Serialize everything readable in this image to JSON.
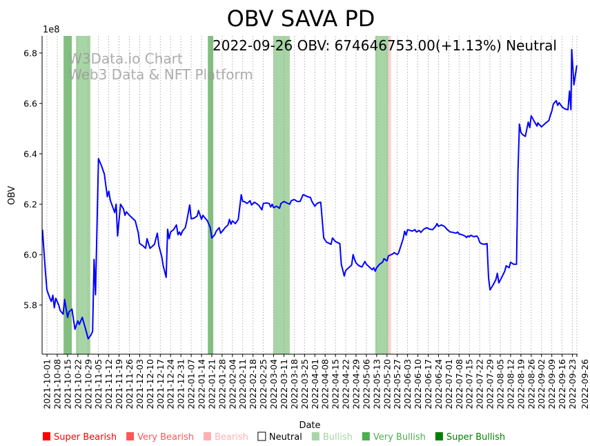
{
  "chart_data": {
    "type": "line",
    "title": "OBV SAVA PD",
    "annotation": "2022-09-26 OBV: 674646753.00(+1.13%) Neutral",
    "watermark": [
      "W3Data.io Chart",
      "Web3 Data & NFT Platform"
    ],
    "xlabel": "Date",
    "ylabel": "OBV",
    "y_offset_label": "1e8",
    "x_origin_date": "2021-10-01",
    "x_unit": "days since 2021-10-01",
    "xlim": [
      -3.3,
      360.5
    ],
    "ylim": [
      5.605,
      6.868
    ],
    "y_scale": 100000000,
    "grid": "x dotted",
    "yticks": [
      "5.8",
      "6.0",
      "6.2",
      "6.4",
      "6.6",
      "6.8"
    ],
    "xtick_days": [
      0,
      7,
      14,
      21,
      28,
      35,
      42,
      49,
      56,
      63,
      70,
      77,
      84,
      91,
      98,
      105,
      112,
      119,
      126,
      133,
      140,
      147,
      154,
      161,
      168,
      175,
      182,
      189,
      196,
      203,
      210,
      217,
      224,
      231,
      238,
      245,
      252,
      259,
      266,
      273,
      280,
      287,
      294,
      301,
      308,
      315,
      322,
      329,
      336,
      343,
      350,
      357,
      360
    ],
    "xticks": [
      "2021-10-01",
      "2021-10-08",
      "2021-10-15",
      "2021-10-22",
      "2021-10-29",
      "2021-11-05",
      "2021-11-12",
      "2021-11-19",
      "2021-11-26",
      "2021-12-03",
      "2021-12-10",
      "2021-12-17",
      "2021-12-24",
      "2021-12-31",
      "2022-01-07",
      "2022-01-14",
      "2022-01-21",
      "2022-01-28",
      "2022-02-04",
      "2022-02-11",
      "2022-02-18",
      "2022-02-25",
      "2022-03-04",
      "2022-03-11",
      "2022-03-18",
      "2022-03-25",
      "2022-04-01",
      "2022-04-08",
      "2022-04-15",
      "2022-04-22",
      "2022-04-29",
      "2022-05-06",
      "2022-05-13",
      "2022-05-20",
      "2022-05-27",
      "2022-06-03",
      "2022-06-10",
      "2022-06-17",
      "2022-06-24",
      "2022-07-01",
      "2022-07-08",
      "2022-07-15",
      "2022-07-22",
      "2022-07-29",
      "2022-08-05",
      "2022-08-12",
      "2022-08-19",
      "2022-08-26",
      "2022-09-02",
      "2022-09-09",
      "2022-09-16",
      "2022-09-23",
      "2022-09-26"
    ],
    "series": [
      {
        "name": "OBV",
        "color": "#0000ff",
        "x": [
          -3,
          -2,
          -1,
          0,
          2,
          3,
          4,
          5,
          6,
          8,
          9,
          11,
          12,
          14,
          15,
          17,
          19,
          21,
          22,
          23,
          24,
          26,
          28,
          30,
          31,
          32,
          33,
          35,
          37,
          39,
          41,
          42,
          43,
          45,
          46,
          47,
          48,
          50,
          52,
          53,
          54,
          56,
          58,
          60,
          62,
          63,
          65,
          67,
          68,
          70,
          73,
          75,
          76,
          78,
          79,
          81,
          82,
          83,
          84,
          86,
          88,
          89,
          90,
          91,
          92,
          94,
          95,
          97,
          98,
          100,
          102,
          103,
          105,
          106,
          107,
          109,
          111,
          112,
          114,
          115,
          117,
          118,
          120,
          121,
          123,
          124,
          125,
          126,
          128,
          130,
          132,
          133,
          134,
          136,
          138,
          139,
          141,
          143,
          144,
          146,
          147,
          149,
          151,
          152,
          153,
          154,
          156,
          158,
          159,
          161,
          163,
          165,
          166,
          168,
          170,
          172,
          174,
          175,
          177,
          179,
          180,
          182,
          183,
          184,
          186,
          187,
          188,
          190,
          191,
          193,
          194,
          196,
          197,
          199,
          200,
          202,
          203,
          205,
          207,
          208,
          209,
          210,
          212,
          214,
          216,
          217,
          219,
          221,
          222,
          223,
          224,
          226,
          228,
          229,
          231,
          232,
          235,
          236,
          238,
          239,
          242,
          243,
          244,
          245,
          247,
          248,
          250,
          251,
          253,
          254,
          256,
          258,
          260,
          262,
          264,
          265,
          266,
          268,
          270,
          272,
          274,
          276,
          278,
          279,
          280,
          282,
          284,
          285,
          286,
          287,
          288,
          290,
          292,
          293,
          294,
          295,
          297,
          299,
          300,
          301,
          303,
          305,
          306,
          307,
          309,
          311,
          312,
          314,
          315,
          317,
          319,
          320,
          321,
          322,
          323,
          325,
          327,
          328,
          329,
          331,
          333,
          333.5,
          336,
          339,
          341,
          342,
          343,
          344,
          346,
          347,
          348,
          350,
          352,
          354,
          355,
          356,
          356.5,
          358,
          360
        ],
        "y": [
          6.099,
          6.01,
          5.93,
          5.86,
          5.827,
          5.814,
          5.839,
          5.789,
          5.827,
          5.8,
          5.778,
          5.764,
          5.822,
          5.751,
          5.773,
          5.784,
          5.704,
          5.737,
          5.723,
          5.737,
          5.751,
          5.71,
          5.666,
          5.682,
          5.696,
          5.981,
          5.841,
          6.381,
          6.353,
          6.32,
          6.23,
          6.252,
          6.216,
          6.184,
          6.167,
          6.2,
          6.074,
          6.2,
          6.181,
          6.156,
          6.17,
          6.156,
          6.145,
          6.134,
          6.088,
          6.044,
          6.036,
          6.025,
          6.063,
          6.025,
          6.041,
          6.085,
          6.036,
          5.992,
          5.956,
          5.91,
          6.101,
          6.063,
          6.09,
          6.099,
          6.118,
          6.079,
          6.09,
          6.077,
          6.093,
          6.107,
          6.134,
          6.197,
          6.142,
          6.145,
          6.153,
          6.175,
          6.14,
          6.156,
          6.148,
          6.134,
          6.107,
          6.066,
          6.079,
          6.093,
          6.107,
          6.085,
          6.099,
          6.107,
          6.118,
          6.14,
          6.121,
          6.134,
          6.123,
          6.14,
          6.238,
          6.211,
          6.211,
          6.203,
          6.214,
          6.197,
          6.208,
          6.2,
          6.195,
          6.178,
          6.203,
          6.205,
          6.203,
          6.189,
          6.2,
          6.186,
          6.192,
          6.184,
          6.203,
          6.211,
          6.205,
          6.2,
          6.214,
          6.219,
          6.211,
          6.211,
          6.238,
          6.236,
          6.23,
          6.227,
          6.211,
          6.192,
          6.2,
          6.205,
          6.208,
          6.14,
          6.066,
          6.049,
          6.047,
          6.041,
          6.066,
          6.052,
          6.049,
          6.044,
          5.962,
          5.915,
          5.937,
          5.948,
          5.959,
          6.0,
          5.981,
          5.967,
          5.956,
          5.951,
          5.973,
          5.962,
          5.951,
          5.94,
          5.948,
          5.934,
          5.948,
          5.962,
          5.97,
          5.984,
          5.975,
          5.995,
          6.003,
          6.008,
          6.0,
          6.008,
          6.063,
          6.093,
          6.077,
          6.099,
          6.096,
          6.093,
          6.099,
          6.09,
          6.096,
          6.088,
          6.101,
          6.107,
          6.101,
          6.099,
          6.112,
          6.123,
          6.112,
          6.118,
          6.112,
          6.099,
          6.09,
          6.088,
          6.085,
          6.09,
          6.082,
          6.079,
          6.074,
          6.068,
          6.074,
          6.071,
          6.077,
          6.071,
          6.074,
          6.066,
          6.049,
          6.044,
          6.041,
          6.044,
          5.907,
          5.86,
          5.879,
          5.901,
          5.926,
          5.888,
          5.91,
          5.934,
          5.956,
          5.948,
          5.97,
          5.962,
          5.962,
          6.326,
          6.518,
          6.485,
          6.477,
          6.469,
          6.526,
          6.504,
          6.551,
          6.529,
          6.51,
          6.523,
          6.507,
          6.523,
          6.532,
          6.553,
          6.57,
          6.597,
          6.611,
          6.592,
          6.603,
          6.586,
          6.578,
          6.575,
          6.649,
          6.575,
          6.814,
          6.674,
          6.751
        ]
      }
    ],
    "bands": [
      {
        "start": 11.3,
        "end": 16.9,
        "signal": "Very Bullish",
        "color": "#81c07f"
      },
      {
        "start": 19.7,
        "end": 29.5,
        "signal": "Bullish",
        "color": "#a8d5a6"
      },
      {
        "start": 109.3,
        "end": 113.0,
        "signal": "Very Bullish",
        "color": "#81c07f"
      },
      {
        "start": 153.8,
        "end": 165.0,
        "signal": "Bullish",
        "color": "#a8d5a6"
      },
      {
        "start": 223.0,
        "end": 232.0,
        "signal": "Bullish",
        "color": "#a8d5a6"
      },
      {
        "start": 232.0,
        "end": 233.8,
        "signal": "Bearish",
        "color": "#ffd0d0"
      }
    ],
    "legend": {
      "placement": "bottom",
      "items": [
        {
          "label": "Super Bearish",
          "color": "#ff0000",
          "hollow": false
        },
        {
          "label": "Very Bearish",
          "color": "#ff5555",
          "hollow": false
        },
        {
          "label": "Bearish",
          "color": "#ffb0b0",
          "hollow": false
        },
        {
          "label": "Neutral",
          "color": "#000000",
          "hollow": true
        },
        {
          "label": "Bullish",
          "color": "#a8d5a6",
          "hollow": false
        },
        {
          "label": "Very Bullish",
          "color": "#4caf50",
          "hollow": false
        },
        {
          "label": "Super Bullish",
          "color": "#008000",
          "hollow": false
        }
      ]
    }
  }
}
